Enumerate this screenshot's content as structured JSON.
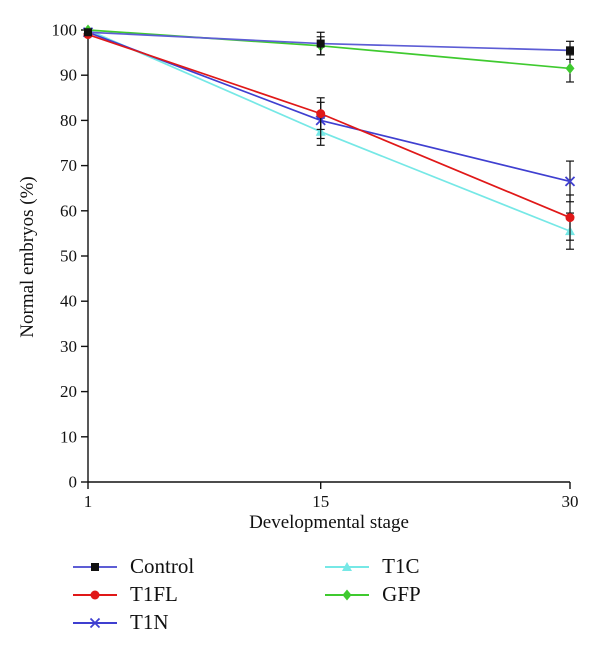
{
  "chart_data": {
    "type": "line",
    "title": "",
    "xlabel": "Developmental stage",
    "ylabel": "Normal embryos (%)",
    "x": [
      1,
      15,
      30
    ],
    "xticks": [
      1,
      15,
      30
    ],
    "yticks": [
      0,
      10,
      20,
      30,
      40,
      50,
      60,
      70,
      80,
      90,
      100
    ],
    "xlim": [
      1,
      30
    ],
    "ylim": [
      0,
      100
    ],
    "grid": false,
    "legend_position": "bottom",
    "axis_color": "#111111",
    "error_bar_color": "#111111",
    "series": [
      {
        "name": "T1C",
        "line_color": "#76e8e6",
        "marker": "triangle",
        "marker_color": "#76e8e6",
        "values": [
          100,
          77.5,
          55.5
        ],
        "errors": [
          0,
          3,
          4
        ]
      },
      {
        "name": "T1N",
        "line_color": "#3f3fd0",
        "marker": "x",
        "marker_color": "#3f3fd0",
        "values": [
          99.5,
          80,
          66.5
        ],
        "errors": [
          0,
          4,
          4.5
        ]
      },
      {
        "name": "T1FL",
        "line_color": "#e01818",
        "marker": "circle",
        "marker_color": "#e01818",
        "values": [
          99,
          81.5,
          58.5
        ],
        "errors": [
          0,
          3.5,
          5
        ]
      },
      {
        "name": "GFP",
        "line_color": "#3fca2f",
        "marker": "diamond",
        "marker_color": "#3fca2f",
        "values": [
          100,
          96.5,
          91.5
        ],
        "errors": [
          0,
          2,
          3
        ]
      },
      {
        "name": "Control",
        "line_color": "#5d5dd5",
        "marker": "square",
        "marker_color": "#111111",
        "values": [
          99.5,
          97,
          95.5
        ],
        "errors": [
          0,
          2.5,
          2
        ]
      }
    ],
    "legend_columns": [
      [
        "Control",
        "T1FL",
        "T1N"
      ],
      [
        "T1C",
        "GFP"
      ]
    ]
  }
}
